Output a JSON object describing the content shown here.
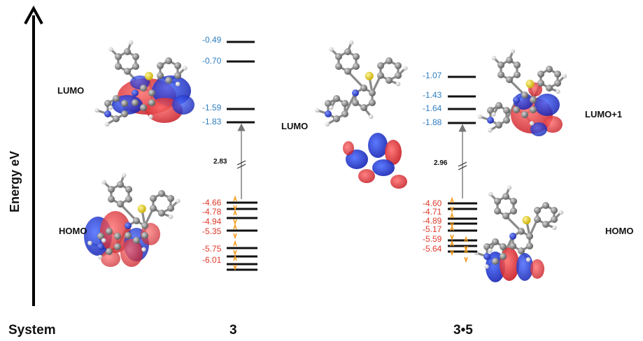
{
  "axis": {
    "label": "Energy eV"
  },
  "footer": {
    "system_label": "System",
    "system_a": "3",
    "system_b": "3•5"
  },
  "panel_a": {
    "lumo_label": "LUMO",
    "homo_label": "HOMO",
    "gap": "2.83",
    "unoccupied": [
      "-0.49",
      "-0.70",
      "-1.59",
      "-1.83"
    ],
    "occupied": [
      "-4.66",
      "-4.78",
      "-4.94",
      "-5.35",
      "-5.75",
      "-6.01"
    ]
  },
  "panel_b": {
    "lumo_label": "LUMO",
    "lumo1_label": "LUMO+1",
    "homo_label": "HOMO",
    "gap": "2.96",
    "unoccupied": [
      "-1.07",
      "-1.43",
      "-1.64",
      "-1.88"
    ],
    "occupied": [
      "-4.60",
      "-4.71",
      "-4.89",
      "-5.17",
      "-5.59",
      "-5.64"
    ]
  },
  "colors": {
    "unoccupied_text": "#2f7fc1",
    "occupied_text": "#e03a2b",
    "spin_arrows": "#f39c1f",
    "level_line": "#111111",
    "orbital_positive": "#d9262e",
    "orbital_negative": "#1f2bd0",
    "carbon": "#7a7a7a",
    "nitrogen": "#2a3fc9",
    "sulfur": "#e8d21c",
    "hydrogen": "#ececec"
  }
}
